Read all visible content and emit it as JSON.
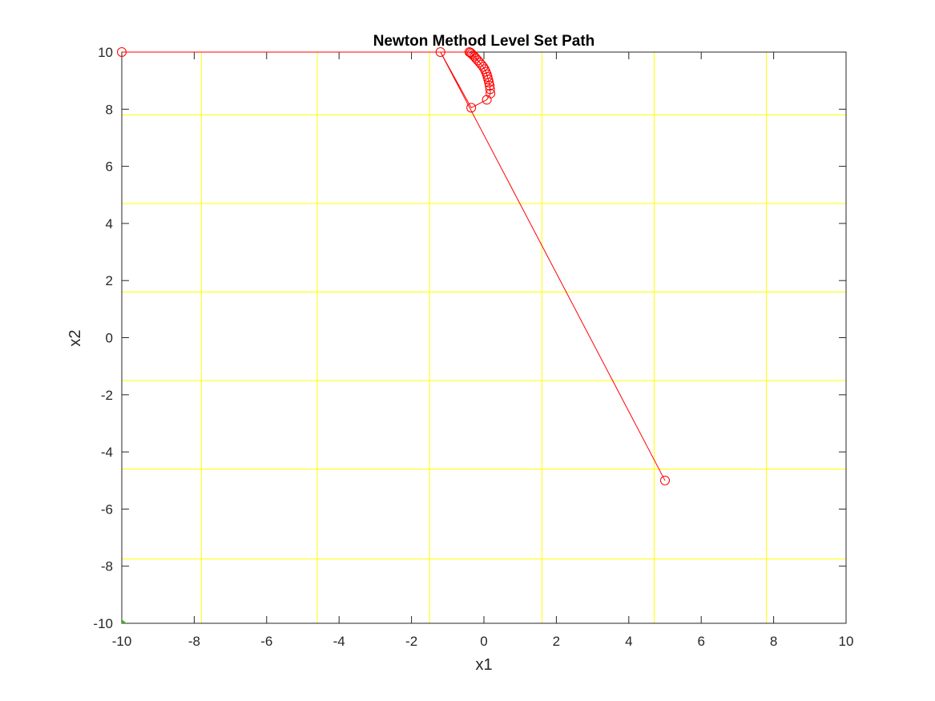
{
  "chart_data": {
    "type": "line",
    "title": "Newton Method Level Set Path",
    "xlabel": "x1",
    "ylabel": "x2",
    "xlim": [
      -10,
      10
    ],
    "ylim": [
      -10,
      10
    ],
    "xticks": [
      -10,
      -8,
      -6,
      -4,
      -2,
      0,
      2,
      4,
      6,
      8,
      10
    ],
    "yticks": [
      -10,
      -8,
      -6,
      -4,
      -2,
      0,
      2,
      4,
      6,
      8,
      10
    ],
    "xtick_labels": [
      "-10",
      "-8",
      "-6",
      "-4",
      "-2",
      "0",
      "2",
      "4",
      "6",
      "8",
      "10"
    ],
    "ytick_labels": [
      "-10",
      "-8",
      "-6",
      "-4",
      "-2",
      "0",
      "2",
      "4",
      "6",
      "8",
      "10"
    ],
    "grid": false,
    "legend": "none",
    "contours": {
      "color": "#ffff00",
      "vertical_lines_x": [
        -7.8,
        -4.6,
        -1.5,
        1.6,
        4.7,
        7.8
      ],
      "horizontal_lines_y": [
        7.8,
        4.7,
        1.6,
        -1.5,
        -4.6,
        -7.75
      ]
    },
    "series": [
      {
        "color": "#ff0000",
        "marker": "circle",
        "x": [
          5.0,
          -1.2,
          -0.35,
          0.08,
          0.18,
          0.17,
          0.16,
          0.14,
          0.12,
          0.1,
          0.08,
          0.05,
          0.02,
          -0.02,
          -0.07,
          -0.12,
          -0.17,
          -0.22,
          -0.26,
          -0.3,
          -0.34,
          -0.37,
          -0.4,
          -10.0
        ],
        "y": [
          -5.0,
          10.0,
          8.05,
          8.33,
          8.55,
          8.7,
          8.82,
          8.93,
          9.04,
          9.13,
          9.22,
          9.31,
          9.4,
          9.48,
          9.56,
          9.64,
          9.71,
          9.78,
          9.84,
          9.89,
          9.94,
          9.98,
          10.0,
          10.0
        ]
      }
    ]
  }
}
